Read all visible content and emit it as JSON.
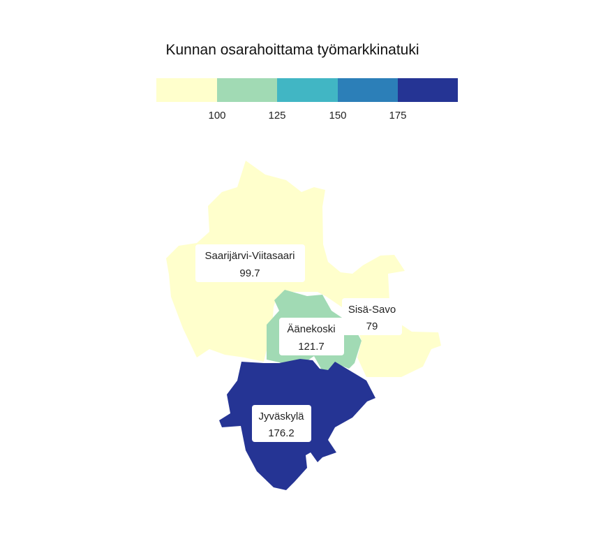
{
  "title": "Kunnan osarahoittama työmarkkinatuki",
  "legend": {
    "breaks": [
      "100",
      "125",
      "150",
      "175"
    ],
    "colors": [
      "#ffffcc",
      "#a1dab4",
      "#41b6c4",
      "#2c7fb8",
      "#253494"
    ]
  },
  "regions": [
    {
      "name": "Saarijärvi-Viitasaari",
      "value": "99.7",
      "color": "#ffffcc"
    },
    {
      "name": "Sisä-Savo",
      "value": "79",
      "color": "#ffffcc"
    },
    {
      "name": "Äänekoski",
      "value": "121.7",
      "color": "#a1dab4"
    },
    {
      "name": "Jyväskylä",
      "value": "176.2",
      "color": "#253494"
    }
  ]
}
